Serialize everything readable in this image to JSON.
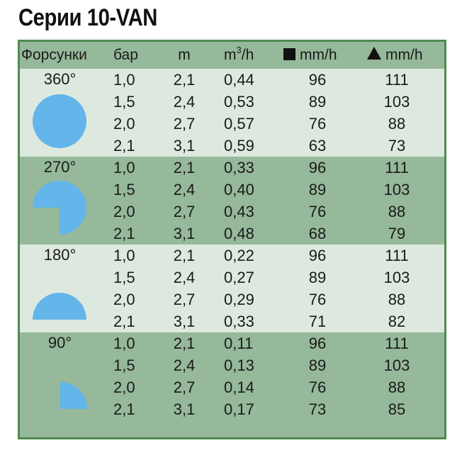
{
  "title": "Серии 10-VAN",
  "header": {
    "nozzles": "Форсунки",
    "bar": "бар",
    "m": "m",
    "flow_base": "m",
    "flow_exp": "3",
    "flow_unit": "/h",
    "square_rate": "mm/h",
    "triangle_rate": "mm/h"
  },
  "colors": {
    "shape_fill": "#63b5ea",
    "light_row": "#dde9df",
    "dark_row": "#95b99a",
    "border": "#4f8a4f"
  },
  "groups": [
    {
      "angle": "360°",
      "shape": "full-circle-icon",
      "rows": [
        {
          "bar": "1,0",
          "m": "2,1",
          "q": "0,44",
          "sq": "96",
          "tr": "111"
        },
        {
          "bar": "1,5",
          "m": "2,4",
          "q": "0,53",
          "sq": "89",
          "tr": "103"
        },
        {
          "bar": "2,0",
          "m": "2,7",
          "q": "0,57",
          "sq": "76",
          "tr": "88"
        },
        {
          "bar": "2,1",
          "m": "3,1",
          "q": "0,59",
          "sq": "63",
          "tr": "73"
        }
      ]
    },
    {
      "angle": "270°",
      "shape": "three-quarter-circle-icon",
      "rows": [
        {
          "bar": "1,0",
          "m": "2,1",
          "q": "0,33",
          "sq": "96",
          "tr": "111"
        },
        {
          "bar": "1,5",
          "m": "2,4",
          "q": "0,40",
          "sq": "89",
          "tr": "103"
        },
        {
          "bar": "2,0",
          "m": "2,7",
          "q": "0,43",
          "sq": "76",
          "tr": "88"
        },
        {
          "bar": "2,1",
          "m": "3,1",
          "q": "0,48",
          "sq": "68",
          "tr": "79"
        }
      ]
    },
    {
      "angle": "180°",
      "shape": "half-circle-icon",
      "rows": [
        {
          "bar": "1,0",
          "m": "2,1",
          "q": "0,22",
          "sq": "96",
          "tr": "111"
        },
        {
          "bar": "1,5",
          "m": "2,4",
          "q": "0,27",
          "sq": "89",
          "tr": "103"
        },
        {
          "bar": "2,0",
          "m": "2,7",
          "q": "0,29",
          "sq": "76",
          "tr": "88"
        },
        {
          "bar": "2,1",
          "m": "3,1",
          "q": "0,33",
          "sq": "71",
          "tr": "82"
        }
      ]
    },
    {
      "angle": "90°",
      "shape": "quarter-circle-icon",
      "rows": [
        {
          "bar": "1,0",
          "m": "2,1",
          "q": "0,11",
          "sq": "96",
          "tr": "111"
        },
        {
          "bar": "1,5",
          "m": "2,4",
          "q": "0,13",
          "sq": "89",
          "tr": "103"
        },
        {
          "bar": "2,0",
          "m": "2,7",
          "q": "0,14",
          "sq": "76",
          "tr": "88"
        },
        {
          "bar": "2,1",
          "m": "3,1",
          "q": "0,17",
          "sq": "73",
          "tr": "85"
        }
      ]
    }
  ]
}
